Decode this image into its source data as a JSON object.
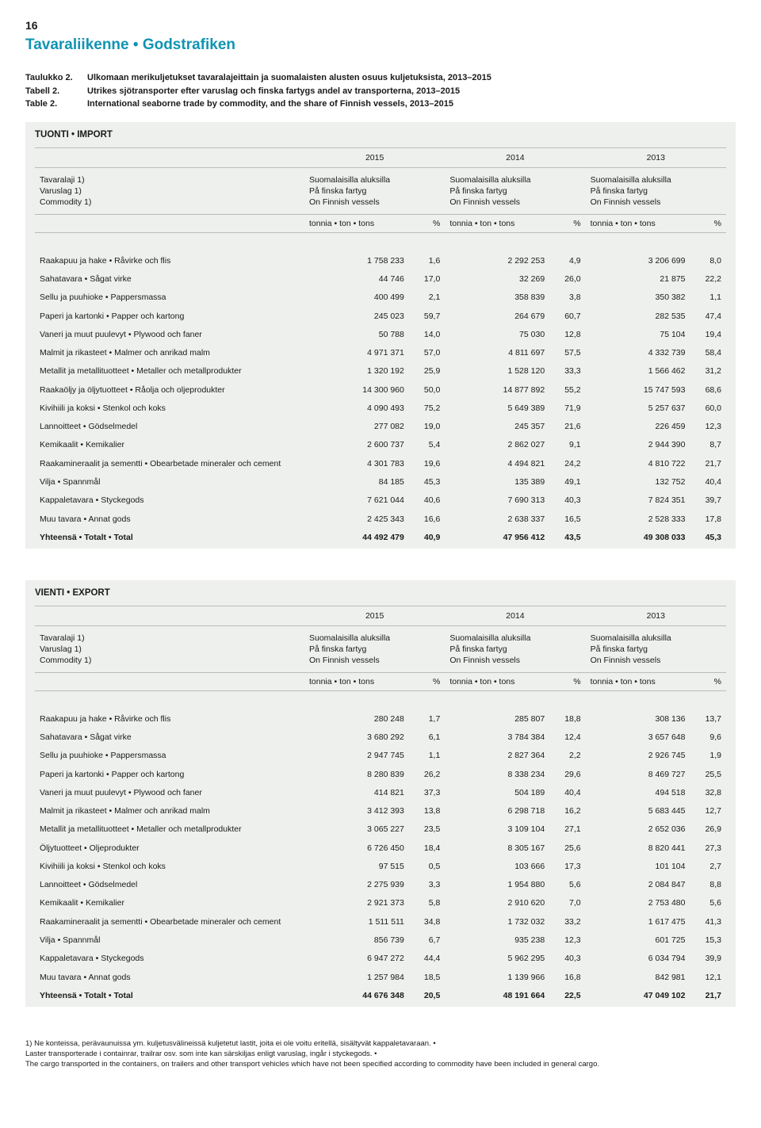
{
  "page_number": "16",
  "section_title": "Tavaraliikenne • Godstrafiken",
  "captions": [
    {
      "label": "Taulukko 2.",
      "text": "Ulkomaan merikuljetukset tavaralajeittain ja suomalaisten alusten osuus kuljetuksista, 2013–2015",
      "bold": true
    },
    {
      "label": "Tabell 2.",
      "text": "Utrikes sjötransporter efter varuslag och finska fartygs andel av transporterna, 2013–2015",
      "bold": true
    },
    {
      "label": "Table 2.",
      "text": "International seaborne trade by commodity, and the share of Finnish vessels, 2013–2015",
      "bold": true
    }
  ],
  "column_header_lines": [
    "Suomalaisilla aluksilla",
    "På finska fartyg",
    "On Finnish vessels"
  ],
  "unit_tons": "tonnia • ton • tons",
  "unit_pct": "%",
  "row_label_lines": [
    "Tavaralaji 1)",
    "Varuslag 1)",
    "Commodity 1)"
  ],
  "years": [
    "2015",
    "2014",
    "2013"
  ],
  "import_panel": {
    "title": "TUONTI • IMPORT",
    "rows": [
      {
        "name": "Raakapuu ja hake • Råvirke och flis",
        "v": [
          "1 758 233",
          "1,6",
          "2 292 253",
          "4,9",
          "3 206 699",
          "8,0"
        ]
      },
      {
        "name": "Sahatavara • Sågat virke",
        "v": [
          "44 746",
          "17,0",
          "32 269",
          "26,0",
          "21 875",
          "22,2"
        ]
      },
      {
        "name": "Sellu ja puuhioke • Pappersmassa",
        "v": [
          "400 499",
          "2,1",
          "358 839",
          "3,8",
          "350 382",
          "1,1"
        ]
      },
      {
        "name": "Paperi ja kartonki • Papper och kartong",
        "v": [
          "245 023",
          "59,7",
          "264 679",
          "60,7",
          "282 535",
          "47,4"
        ]
      },
      {
        "name": "Vaneri ja muut puulevyt • Plywood och faner",
        "v": [
          "50 788",
          "14,0",
          "75 030",
          "12,8",
          "75 104",
          "19,4"
        ]
      },
      {
        "name": "Malmit ja rikasteet • Malmer och anrikad malm",
        "v": [
          "4 971 371",
          "57,0",
          "4 811 697",
          "57,5",
          "4 332 739",
          "58,4"
        ]
      },
      {
        "name": "Metallit ja metallituotteet • Metaller och metallprodukter",
        "v": [
          "1 320 192",
          "25,9",
          "1 528 120",
          "33,3",
          "1 566 462",
          "31,2"
        ]
      },
      {
        "name": "Raakaöljy ja öljytuotteet • Råolja och oljeprodukter",
        "v": [
          "14 300 960",
          "50,0",
          "14 877 892",
          "55,2",
          "15 747 593",
          "68,6"
        ]
      },
      {
        "name": "Kivihiili ja koksi • Stenkol och koks",
        "v": [
          "4 090 493",
          "75,2",
          "5 649 389",
          "71,9",
          "5 257 637",
          "60,0"
        ]
      },
      {
        "name": "Lannoitteet • Gödselmedel",
        "v": [
          "277 082",
          "19,0",
          "245 357",
          "21,6",
          "226 459",
          "12,3"
        ]
      },
      {
        "name": "Kemikaalit • Kemikalier",
        "v": [
          "2 600 737",
          "5,4",
          "2 862 027",
          "9,1",
          "2 944 390",
          "8,7"
        ]
      },
      {
        "name": "Raakamineraalit ja sementti • Obearbetade mineraler och cement",
        "v": [
          "4 301 783",
          "19,6",
          "4 494 821",
          "24,2",
          "4 810 722",
          "21,7"
        ]
      },
      {
        "name": "Vilja • Spannmål",
        "v": [
          "84 185",
          "45,3",
          "135 389",
          "49,1",
          "132 752",
          "40,4"
        ]
      },
      {
        "name": "Kappaletavara • Styckegods",
        "v": [
          "7 621 044",
          "40,6",
          "7 690 313",
          "40,3",
          "7 824 351",
          "39,7"
        ]
      },
      {
        "name": "Muu tavara • Annat gods",
        "v": [
          "2 425 343",
          "16,6",
          "2 638 337",
          "16,5",
          "2 528 333",
          "17,8"
        ]
      }
    ],
    "total": {
      "name": "Yhteensä • Totalt • Total",
      "v": [
        "44 492 479",
        "40,9",
        "47 956 412",
        "43,5",
        "49 308 033",
        "45,3"
      ]
    }
  },
  "export_panel": {
    "title": "VIENTI • EXPORT",
    "rows": [
      {
        "name": "Raakapuu ja hake • Råvirke och flis",
        "v": [
          "280 248",
          "1,7",
          "285 807",
          "18,8",
          "308 136",
          "13,7"
        ]
      },
      {
        "name": "Sahatavara • Sågat virke",
        "v": [
          "3 680 292",
          "6,1",
          "3 784 384",
          "12,4",
          "3 657 648",
          "9,6"
        ]
      },
      {
        "name": "Sellu ja puuhioke • Pappersmassa",
        "v": [
          "2 947 745",
          "1,1",
          "2 827 364",
          "2,2",
          "2 926 745",
          "1,9"
        ]
      },
      {
        "name": "Paperi ja kartonki • Papper och kartong",
        "v": [
          "8 280 839",
          "26,2",
          "8 338 234",
          "29,6",
          "8 469 727",
          "25,5"
        ]
      },
      {
        "name": "Vaneri ja muut puulevyt • Plywood och faner",
        "v": [
          "414 821",
          "37,3",
          "504 189",
          "40,4",
          "494 518",
          "32,8"
        ]
      },
      {
        "name": "Malmit ja rikasteet • Malmer och anrikad malm",
        "v": [
          "3 412 393",
          "13,8",
          "6 298 718",
          "16,2",
          "5 683 445",
          "12,7"
        ]
      },
      {
        "name": "Metallit ja metallituotteet • Metaller och metallprodukter",
        "v": [
          "3 065 227",
          "23,5",
          "3 109 104",
          "27,1",
          "2 652 036",
          "26,9"
        ]
      },
      {
        "name": "Öljytuotteet • Oljeprodukter",
        "v": [
          "6 726 450",
          "18,4",
          "8 305 167",
          "25,6",
          "8 820 441",
          "27,3"
        ]
      },
      {
        "name": "Kivihiili ja koksi • Stenkol och koks",
        "v": [
          "97 515",
          "0,5",
          "103 666",
          "17,3",
          "101 104",
          "2,7"
        ]
      },
      {
        "name": "Lannoitteet • Gödselmedel",
        "v": [
          "2 275 939",
          "3,3",
          "1 954 880",
          "5,6",
          "2 084 847",
          "8,8"
        ]
      },
      {
        "name": "Kemikaalit • Kemikalier",
        "v": [
          "2 921 373",
          "5,8",
          "2 910 620",
          "7,0",
          "2 753 480",
          "5,6"
        ]
      },
      {
        "name": "Raakamineraalit ja sementti • Obearbetade mineraler och cement",
        "v": [
          "1 511 511",
          "34,8",
          "1 732 032",
          "33,2",
          "1 617 475",
          "41,3"
        ]
      },
      {
        "name": "Vilja • Spannmål",
        "v": [
          "856 739",
          "6,7",
          "935 238",
          "12,3",
          "601 725",
          "15,3"
        ]
      },
      {
        "name": "Kappaletavara • Styckegods",
        "v": [
          "6 947 272",
          "44,4",
          "5 962 295",
          "40,3",
          "6 034 794",
          "39,9"
        ]
      },
      {
        "name": "Muu tavara • Annat gods",
        "v": [
          "1 257 984",
          "18,5",
          "1 139 966",
          "16,8",
          "842 981",
          "12,1"
        ]
      }
    ],
    "total": {
      "name": "Yhteensä • Totalt • Total",
      "v": [
        "44 676 348",
        "20,5",
        "48 191 664",
        "22,5",
        "47 049 102",
        "21,7"
      ]
    }
  },
  "footnotes": [
    "1) Ne konteissa, perävaunuissa ym. kuljetusvälineissä kuljetetut lastit, joita ei ole voitu eritellä, sisältyvät kappaletavaraan. •",
    "    Laster transporterade i containrar, trailrar osv. som inte kan särskiljas enligt varuslag, ingår i styckegods. •",
    "    The cargo transported in the containers, on trailers and other transport vehicles which have not been specified according to commodity have been included in general cargo."
  ]
}
